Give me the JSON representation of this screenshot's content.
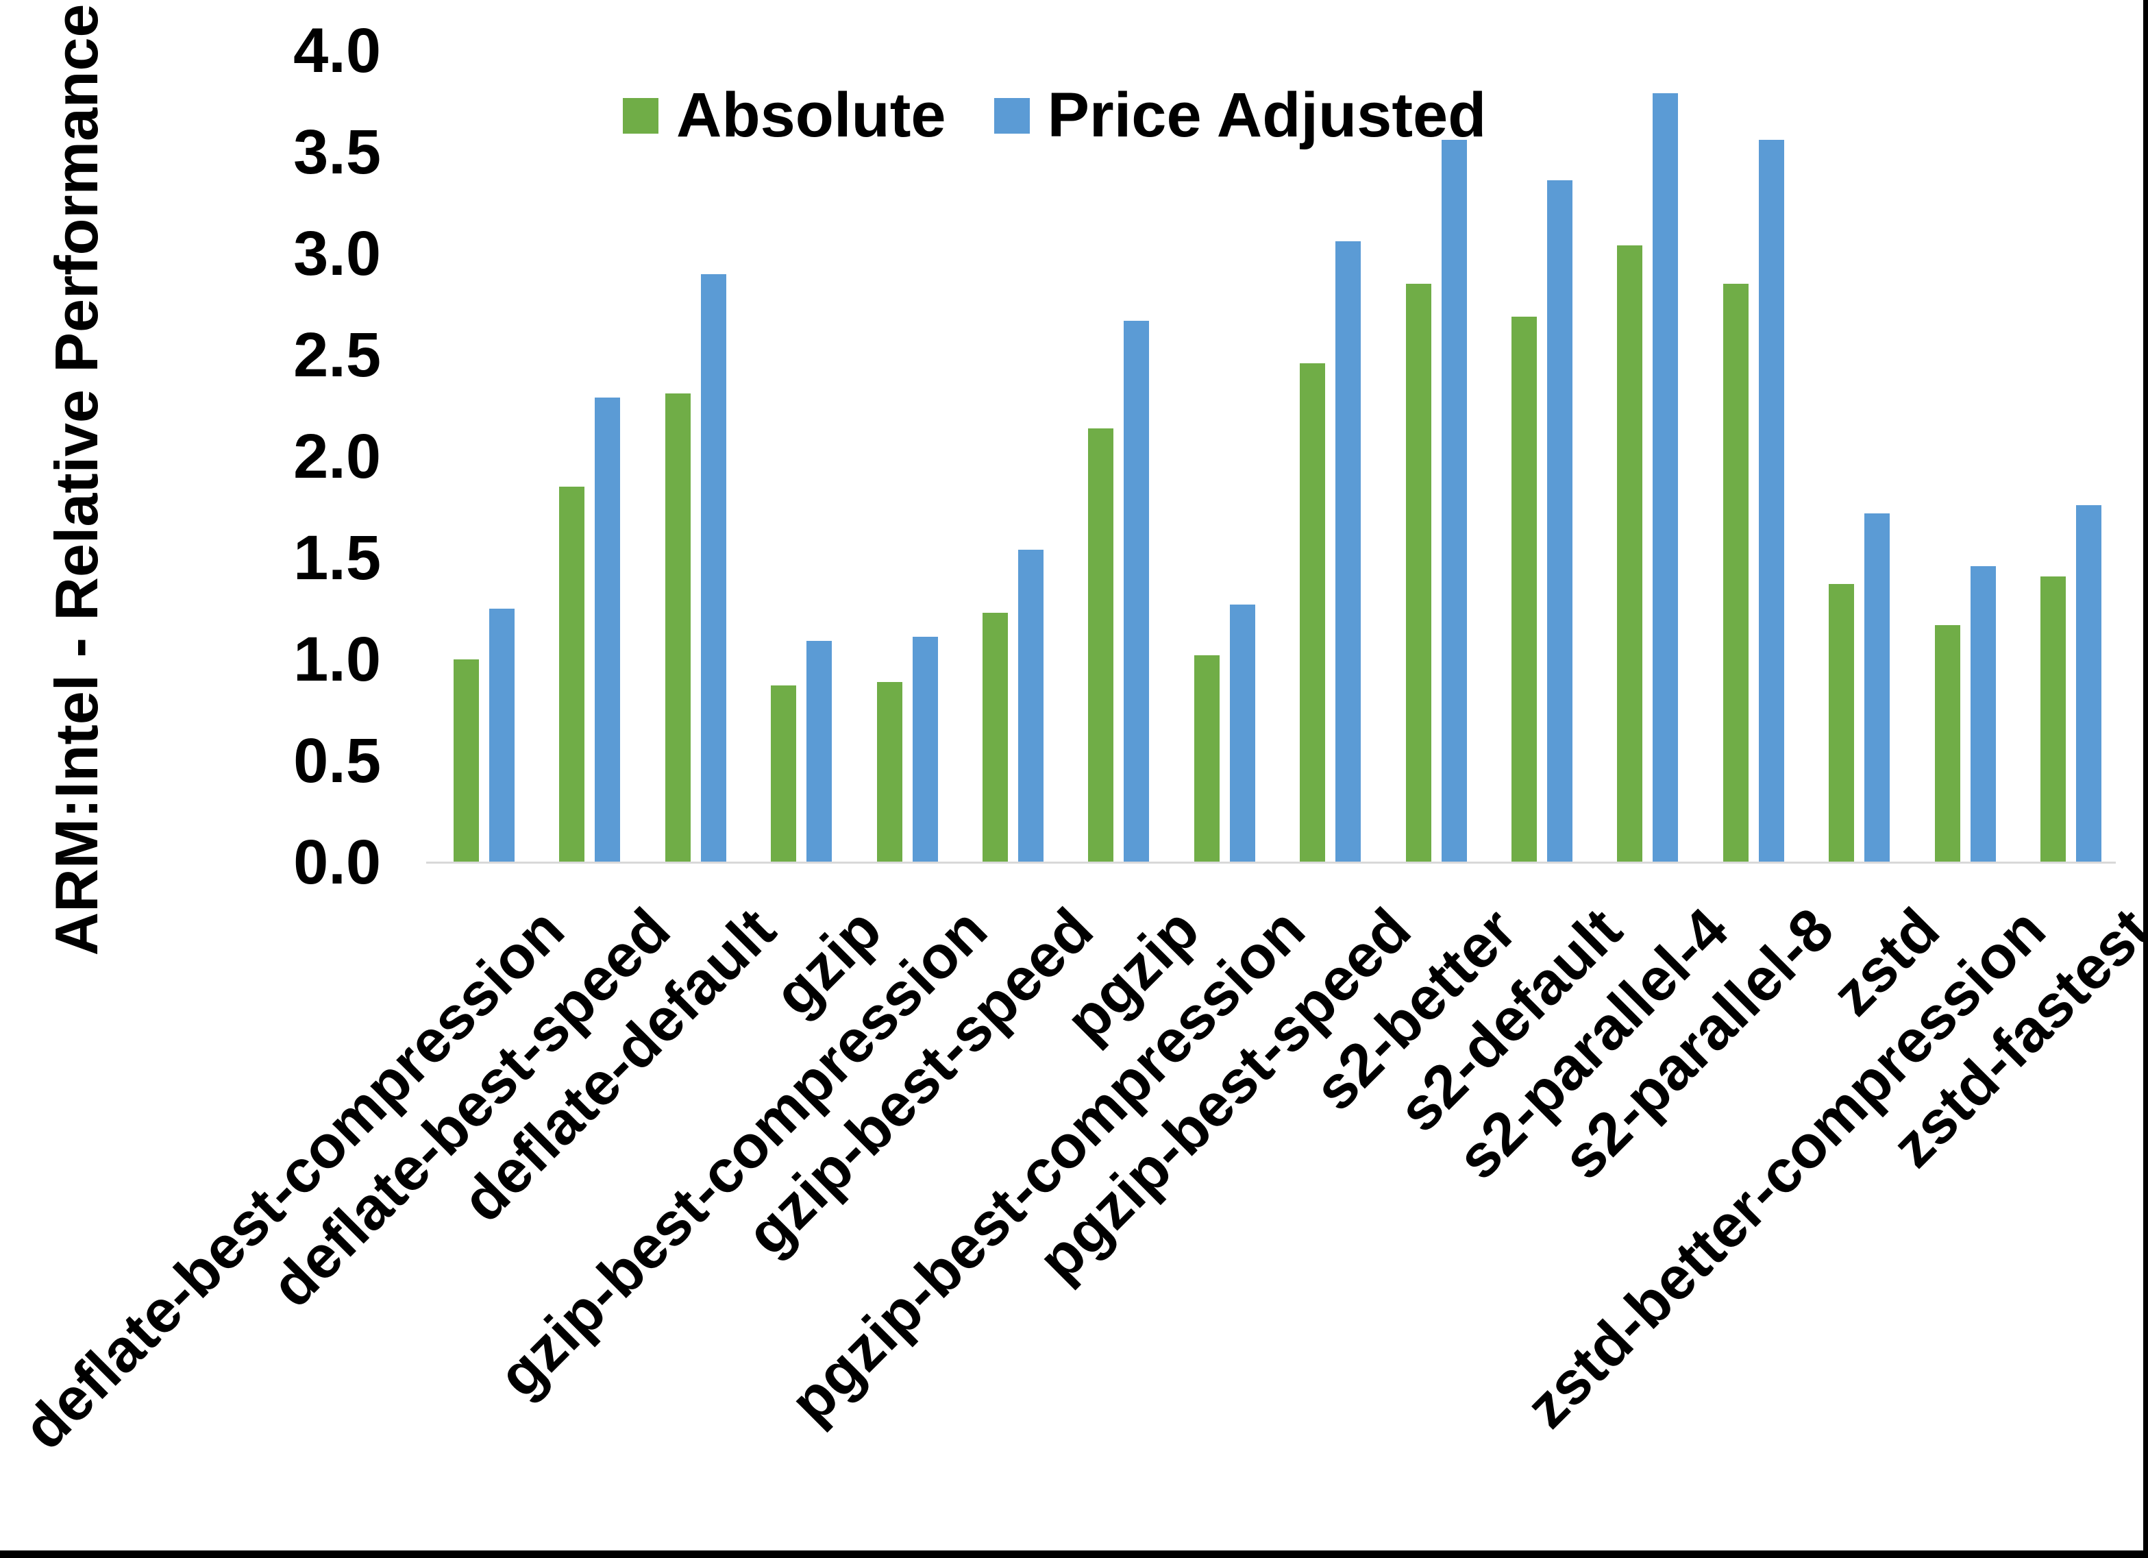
{
  "window": {
    "background": "#ffffff",
    "edge_color": "#000000"
  },
  "chart_data": {
    "type": "bar",
    "title": "",
    "xlabel": "",
    "ylabel": "ARM:Intel - Relative Performance",
    "ylim": [
      0.0,
      4.0
    ],
    "y_ticks": [
      "4.0",
      "3.5",
      "3.0",
      "2.5",
      "2.0",
      "1.5",
      "1.0",
      "0.5",
      "0.0"
    ],
    "grid": false,
    "legend_position": "top-center",
    "axis_line_color": "#D9D9D9",
    "categories": [
      "deflate-best-compression",
      "deflate-best-speed",
      "deflate-default",
      "gzip",
      "gzip-best-compression",
      "gzip-best-speed",
      "pgzip",
      "pgzip-best-compression",
      "pgzip-best-speed",
      "s2-better",
      "s2-default",
      "s2-parallel-4",
      "s2-parallel-8",
      "zstd",
      "zstd-better-compression",
      "zstd-fastest"
    ],
    "series": [
      {
        "name": "Absolute",
        "color": "#70AD47",
        "values": [
          1.0,
          1.85,
          2.31,
          0.87,
          0.89,
          1.23,
          2.14,
          1.02,
          2.46,
          2.85,
          2.69,
          3.04,
          2.85,
          1.37,
          1.17,
          1.41
        ]
      },
      {
        "name": "Price Adjusted",
        "color": "#5B9BD5",
        "values": [
          1.25,
          2.29,
          2.9,
          1.09,
          1.11,
          1.54,
          2.67,
          1.27,
          3.06,
          3.56,
          3.36,
          3.79,
          3.56,
          1.72,
          1.46,
          1.76
        ]
      }
    ]
  }
}
